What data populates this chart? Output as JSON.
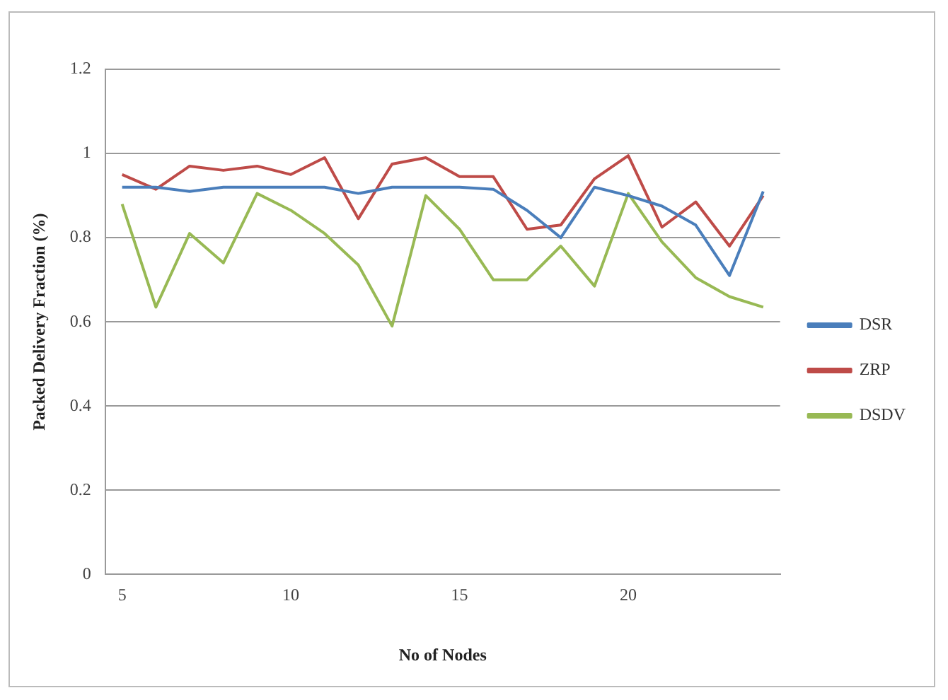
{
  "chart_data": {
    "type": "line",
    "xlabel": "No of Nodes",
    "ylabel": "Packed Delivery Fraction (%)",
    "categories": [
      "5",
      null,
      null,
      null,
      null,
      "10",
      null,
      null,
      null,
      null,
      "15",
      null,
      null,
      null,
      null,
      "20",
      null,
      null,
      null,
      null
    ],
    "series": [
      {
        "name": "DSR",
        "color": "#4a7ebb",
        "values": [
          0.92,
          0.92,
          0.91,
          0.92,
          0.92,
          0.92,
          0.92,
          0.905,
          0.92,
          0.92,
          0.92,
          0.915,
          0.865,
          0.8,
          0.92,
          0.9,
          0.875,
          0.83,
          0.71,
          0.91
        ]
      },
      {
        "name": "ZRP",
        "color": "#be4b48",
        "values": [
          0.95,
          0.915,
          0.97,
          0.96,
          0.97,
          0.95,
          0.99,
          0.845,
          0.975,
          0.99,
          0.945,
          0.945,
          0.82,
          0.83,
          0.94,
          0.995,
          0.825,
          0.885,
          0.78,
          0.9
        ]
      },
      {
        "name": "DSDV",
        "color": "#98b954",
        "values": [
          0.88,
          0.635,
          0.81,
          0.74,
          0.905,
          0.865,
          0.81,
          0.735,
          0.59,
          0.9,
          0.82,
          0.7,
          0.7,
          0.78,
          0.685,
          0.905,
          0.79,
          0.705,
          0.66,
          0.635
        ]
      }
    ],
    "ylim": [
      0,
      1.2
    ],
    "yticks": [
      0,
      0.2,
      0.4,
      0.6,
      0.8,
      1,
      1.2
    ],
    "grid": "y",
    "legend": "right",
    "marker": "none",
    "line_style": "solid"
  }
}
